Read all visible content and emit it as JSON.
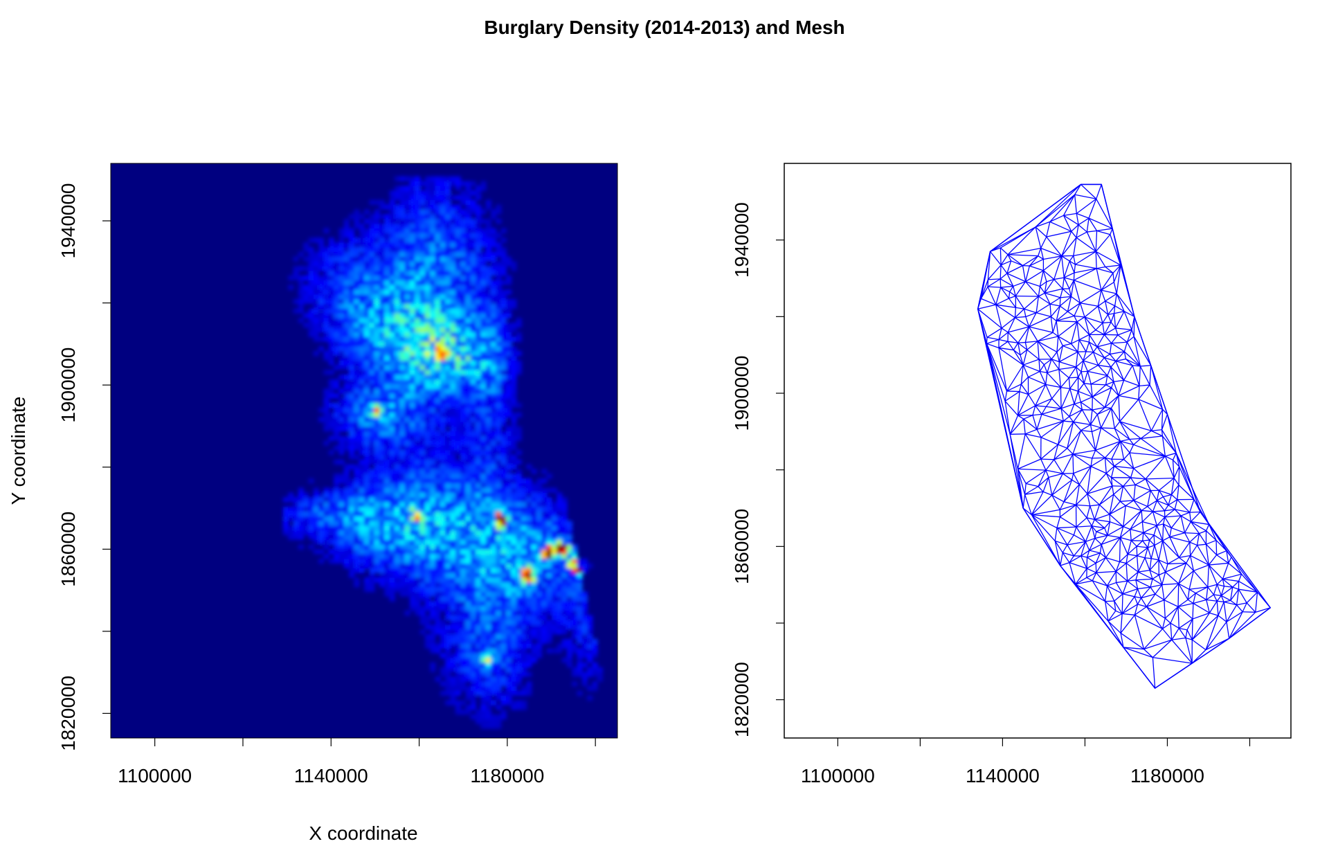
{
  "chart_data": {
    "title": "Burglary Density (2014-2013) and Mesh",
    "panels": [
      {
        "type": "heatmap",
        "xlabel": "X coordinate",
        "ylabel": "Y coordinate",
        "xlim": [
          1090000,
          1205000
        ],
        "ylim": [
          1814000,
          1954000
        ],
        "xticks": [
          1100000,
          1120000,
          1140000,
          1160000,
          1180000,
          1200000
        ],
        "xtick_labels": [
          "1100000",
          "",
          "1140000",
          "",
          "1180000",
          ""
        ],
        "yticks": [
          1820000,
          1840000,
          1860000,
          1880000,
          1900000,
          1920000,
          1940000
        ],
        "ytick_labels": [
          "1820000",
          "",
          "1860000",
          "",
          "1900000",
          "",
          "1940000"
        ],
        "colormap": [
          "#00007F",
          "#0000FF",
          "#007FFF",
          "#00FFFF",
          "#7FFF7F",
          "#FFFF00",
          "#FF7F00",
          "#FF0000",
          "#7F0000"
        ],
        "background": "#000080",
        "hotspots": [
          {
            "x": 1178000,
            "y": 1866500,
            "level": 1.0
          },
          {
            "x": 1184000,
            "y": 1853000,
            "level": 1.0
          },
          {
            "x": 1189000,
            "y": 1858500,
            "level": 0.95
          },
          {
            "x": 1192000,
            "y": 1859500,
            "level": 0.9
          },
          {
            "x": 1195000,
            "y": 1855500,
            "level": 1.0
          },
          {
            "x": 1197000,
            "y": 1855000,
            "level": 0.85
          },
          {
            "x": 1164000,
            "y": 1907500,
            "level": 0.6
          },
          {
            "x": 1159000,
            "y": 1868000,
            "level": 0.45
          },
          {
            "x": 1150000,
            "y": 1893000,
            "level": 0.4
          },
          {
            "x": 1175000,
            "y": 1832500,
            "level": 0.35
          }
        ]
      },
      {
        "type": "mesh",
        "xlim": [
          1087000,
          1210000
        ],
        "ylim": [
          1810000,
          1960000
        ],
        "xticks": [
          1100000,
          1120000,
          1140000,
          1160000,
          1180000,
          1200000
        ],
        "xtick_labels": [
          "1100000",
          "",
          "1140000",
          "",
          "1180000",
          ""
        ],
        "yticks": [
          1820000,
          1840000,
          1860000,
          1880000,
          1900000,
          1920000,
          1940000
        ],
        "ytick_labels": [
          "1820000",
          "",
          "1860000",
          "",
          "1900000",
          "",
          "1940000"
        ],
        "line_color": "#0000FF",
        "hull": [
          [
            1159000,
            1954500
          ],
          [
            1164000,
            1954500
          ],
          [
            1172000,
            1920000
          ],
          [
            1188000,
            1869000
          ],
          [
            1205000,
            1844000
          ],
          [
            1195000,
            1836000
          ],
          [
            1177000,
            1823000
          ],
          [
            1154000,
            1855000
          ],
          [
            1145000,
            1870000
          ],
          [
            1134000,
            1922000
          ],
          [
            1137000,
            1937000
          ]
        ]
      }
    ]
  }
}
